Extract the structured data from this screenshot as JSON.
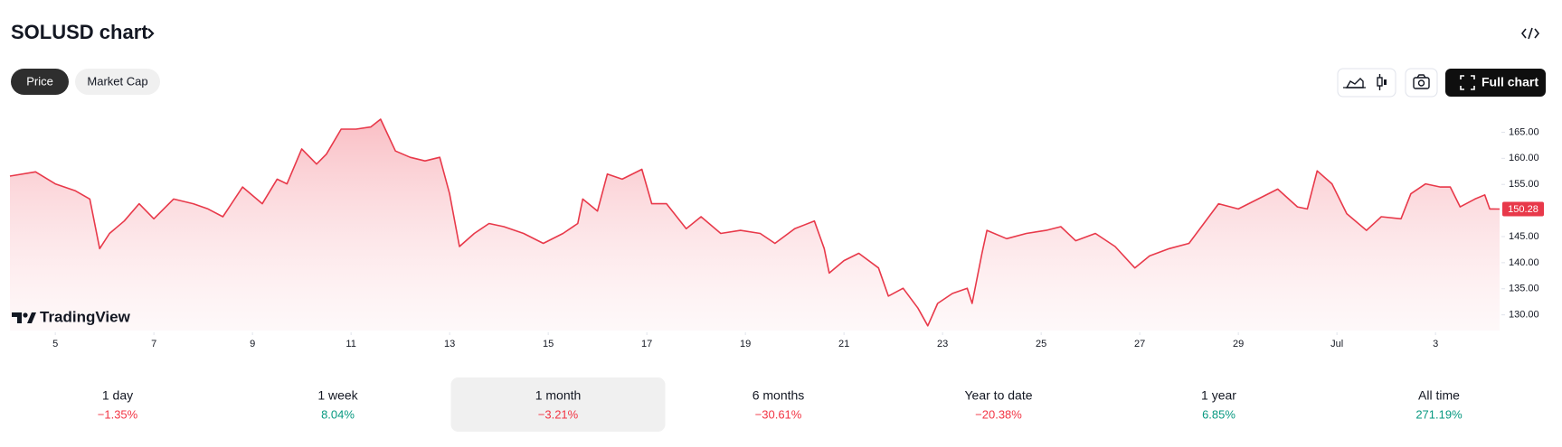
{
  "header": {
    "title": "SOLUSD chart",
    "tabs": [
      {
        "label": "Price",
        "active": true
      },
      {
        "label": "Market Cap",
        "active": false
      }
    ],
    "full_chart": "Full chart",
    "brand": "TradingView"
  },
  "chart_data": {
    "type": "line",
    "x": [
      4.08,
      4.6,
      5.0,
      5.4,
      5.7,
      5.9,
      6.1,
      6.4,
      6.7,
      7.0,
      7.4,
      7.8,
      8.1,
      8.4,
      8.8,
      9.2,
      9.5,
      9.7,
      10.0,
      10.3,
      10.5,
      10.8,
      11.1,
      11.4,
      11.6,
      11.9,
      12.2,
      12.5,
      12.8,
      13.0,
      13.2,
      13.5,
      13.8,
      14.1,
      14.5,
      14.9,
      15.3,
      15.6,
      15.7,
      16.0,
      16.2,
      16.5,
      16.9,
      17.1,
      17.4,
      17.8,
      18.1,
      18.5,
      18.9,
      19.3,
      19.6,
      20.0,
      20.4,
      20.6,
      20.7,
      21.0,
      21.3,
      21.7,
      21.9,
      22.2,
      22.5,
      22.7,
      22.9,
      23.2,
      23.5,
      23.6,
      23.8,
      23.9,
      24.3,
      24.7,
      25.1,
      25.4,
      25.7,
      26.1,
      26.5,
      26.9,
      27.2,
      27.6,
      28.0,
      28.3,
      28.6,
      29.0,
      29.4,
      29.8,
      30.2,
      30.4,
      30.6,
      30.9,
      31.2,
      31.6,
      31.9,
      32.3,
      32.5,
      32.8,
      33.1,
      33.3,
      33.5,
      33.8,
      34.0,
      34.1,
      34.3
    ],
    "series": [
      {
        "color": "#e8394a",
        "values": [
          156.6,
          157.4,
          155.1,
          153.8,
          152.2,
          142.7,
          145.6,
          148.0,
          151.3,
          148.4,
          152.2,
          151.3,
          150.3,
          148.8,
          154.5,
          151.3,
          156.0,
          155.1,
          161.8,
          158.9,
          160.8,
          165.6,
          165.6,
          166.0,
          167.5,
          161.4,
          160.2,
          159.5,
          160.2,
          153.2,
          143.1,
          145.6,
          147.5,
          146.9,
          145.6,
          143.7,
          145.6,
          147.5,
          152.2,
          149.9,
          157.0,
          156.0,
          157.9,
          151.3,
          151.3,
          146.5,
          148.8,
          145.6,
          146.2,
          145.6,
          143.7,
          146.5,
          148.0,
          142.7,
          138.0,
          140.4,
          141.8,
          139.0,
          133.6,
          135.1,
          131.3,
          127.9,
          132.2,
          134.1,
          135.1,
          132.2,
          141.8,
          146.2,
          144.6,
          145.6,
          146.2,
          146.9,
          144.2,
          145.6,
          143.1,
          139.0,
          141.3,
          142.7,
          143.7,
          147.5,
          151.3,
          150.3,
          152.2,
          154.1,
          150.7,
          150.3,
          157.6,
          155.1,
          149.4,
          146.2,
          148.8,
          148.4,
          153.2,
          155.1,
          154.5,
          154.5,
          150.7,
          152.2,
          153.0,
          150.3,
          150.28
        ]
      }
    ],
    "last_value": 150.28,
    "xlim": [
      4.08,
      34.3
    ],
    "xticks": [
      5,
      7,
      9,
      11,
      13,
      15,
      17,
      19,
      21,
      23,
      25,
      27,
      29,
      {
        "value": 31,
        "label": "Jul"
      },
      {
        "value": 33,
        "label": "3"
      }
    ],
    "ylim": [
      127,
      169.4
    ],
    "yticks": [
      {
        "value": 130,
        "label": "130.00"
      },
      {
        "value": 135,
        "label": "135.00"
      },
      {
        "value": 140,
        "label": "140.00"
      },
      {
        "value": 145,
        "label": "145.00"
      },
      {
        "value": 150,
        "label": "150.00"
      },
      {
        "value": 155,
        "label": "155.00"
      },
      {
        "value": 160,
        "label": "160.00"
      },
      {
        "value": 165,
        "label": "165.00"
      }
    ]
  },
  "periods": [
    {
      "label": "1 day",
      "change": "−1.35%"
    },
    {
      "label": "1 week",
      "change": "8.04%"
    },
    {
      "label": "1 month",
      "change": "−3.21%",
      "selected": true
    },
    {
      "label": "6 months",
      "change": "−30.61%"
    },
    {
      "label": "Year to date",
      "change": "−20.38%"
    },
    {
      "label": "1 year",
      "change": "6.85%"
    },
    {
      "label": "All time",
      "change": "271.19%"
    }
  ]
}
